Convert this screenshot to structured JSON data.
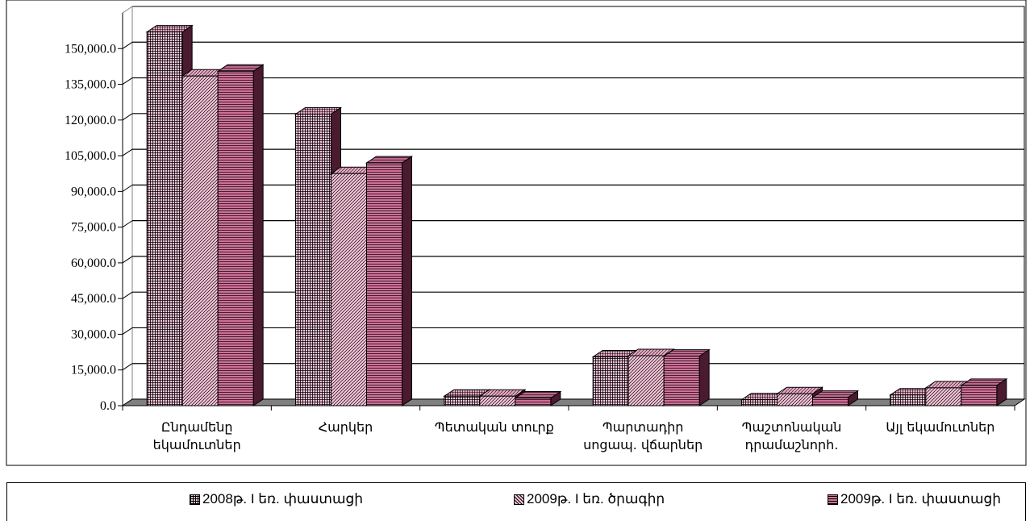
{
  "chart_data": {
    "type": "bar",
    "categories": [
      [
        "Ընդամենը",
        "եկամուտներ"
      ],
      [
        "Հարկեր"
      ],
      [
        "Պետական տուրք"
      ],
      [
        "Պարտադիր",
        "սոցապ. վճարներ"
      ],
      [
        "Պաշտոնական",
        "դրամաշնորհ."
      ],
      [
        "Այլ եկամուտներ"
      ]
    ],
    "series": [
      {
        "name": "2008թ. I եռ. փաստացի",
        "values": [
          157000,
          122500,
          4000,
          20500,
          2500,
          4500
        ]
      },
      {
        "name": "2009թ. I եռ. ծրագիր",
        "values": [
          138500,
          97500,
          4000,
          21000,
          5000,
          7500
        ]
      },
      {
        "name": "2009թ. I եռ. փաստացի",
        "values": [
          140500,
          102000,
          3200,
          20800,
          3500,
          8500
        ]
      }
    ],
    "yticks": [
      "0.0",
      "15,000.0",
      "30,000.0",
      "45,000.0",
      "60,000.0",
      "75,000.0",
      "90,000.0",
      "105,000.0",
      "120,000.0",
      "135,000.0",
      "150,000.0"
    ],
    "ylim": [
      0,
      165000
    ],
    "grid": true,
    "legend_position": "bottom",
    "colors": {
      "series_0": "#f7c6da",
      "series_1": "#f7c6da",
      "series_2": "#d07098",
      "floor": "#808080",
      "grid": "#000000"
    }
  }
}
